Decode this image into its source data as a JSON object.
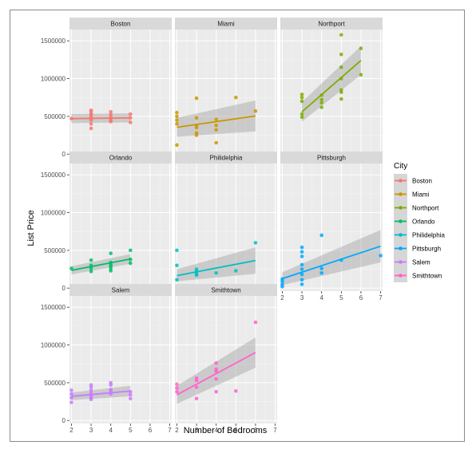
{
  "chart_data": {
    "type": "scatter",
    "xlabel": "Number of Bedrooms",
    "ylabel": "List Price",
    "xlim": [
      1.9,
      7.1
    ],
    "ylim": [
      -40000,
      1650000
    ],
    "x_ticks": [
      2,
      3,
      4,
      5,
      6,
      7
    ],
    "y_ticks": [
      0,
      500000,
      1000000,
      1500000
    ],
    "y_tick_labels": [
      "0",
      "500000",
      "1000000",
      "1500000"
    ],
    "grid": true,
    "legend": {
      "title": "City",
      "placement": "right",
      "entries": [
        "Boston",
        "Miami",
        "Northport",
        "Orlando",
        "Philidelphia",
        "Pittsburgh",
        "Salem",
        "Smithtown"
      ]
    },
    "facets": [
      {
        "name": "Boston",
        "color": "#F8766D",
        "points": [
          [
            2,
            470000
          ],
          [
            3,
            450000
          ],
          [
            3,
            480000
          ],
          [
            3,
            510000
          ],
          [
            3,
            530000
          ],
          [
            3,
            560000
          ],
          [
            3,
            580000
          ],
          [
            3,
            400000
          ],
          [
            3,
            340000
          ],
          [
            4,
            450000
          ],
          [
            4,
            480000
          ],
          [
            4,
            520000
          ],
          [
            4,
            560000
          ],
          [
            4,
            430000
          ],
          [
            5,
            420000
          ],
          [
            5,
            480000
          ],
          [
            5,
            530000
          ]
        ],
        "fit": {
          "x": [
            2,
            5
          ],
          "y": [
            470000,
            480000
          ]
        },
        "band": {
          "lower": [
            410000,
            420000
          ],
          "upper": [
            530000,
            540000
          ]
        }
      },
      {
        "name": "Miami",
        "color": "#CD9600",
        "points": [
          [
            2,
            120000
          ],
          [
            2,
            400000
          ],
          [
            2,
            450000
          ],
          [
            2,
            500000
          ],
          [
            2,
            550000
          ],
          [
            3,
            250000
          ],
          [
            3,
            280000
          ],
          [
            3,
            350000
          ],
          [
            3,
            380000
          ],
          [
            3,
            480000
          ],
          [
            3,
            740000
          ],
          [
            4,
            150000
          ],
          [
            4,
            320000
          ],
          [
            4,
            380000
          ],
          [
            4,
            460000
          ],
          [
            5,
            750000
          ],
          [
            6,
            570000
          ]
        ],
        "fit": {
          "x": [
            2,
            6
          ],
          "y": [
            355000,
            505000
          ]
        },
        "band": {
          "lower": [
            230000,
            300000
          ],
          "upper": [
            480000,
            710000
          ]
        }
      },
      {
        "name": "Northport",
        "color": "#7CAE00",
        "points": [
          [
            3,
            490000
          ],
          [
            3,
            530000
          ],
          [
            3,
            700000
          ],
          [
            3,
            750000
          ],
          [
            3,
            790000
          ],
          [
            4,
            620000
          ],
          [
            4,
            680000
          ],
          [
            4,
            720000
          ],
          [
            4,
            780000
          ],
          [
            5,
            730000
          ],
          [
            5,
            820000
          ],
          [
            5,
            850000
          ],
          [
            5,
            1000000
          ],
          [
            5,
            1150000
          ],
          [
            5,
            1320000
          ],
          [
            5,
            1580000
          ],
          [
            6,
            1050000
          ],
          [
            6,
            1400000
          ]
        ],
        "fit": {
          "x": [
            3,
            6
          ],
          "y": [
            560000,
            1240000
          ]
        },
        "band": {
          "lower": [
            430000,
            1050000
          ],
          "upper": [
            690000,
            1430000
          ]
        }
      },
      {
        "name": "Orlando",
        "color": "#00BE67",
        "points": [
          [
            2,
            260000
          ],
          [
            3,
            220000
          ],
          [
            3,
            260000
          ],
          [
            3,
            300000
          ],
          [
            3,
            370000
          ],
          [
            4,
            230000
          ],
          [
            4,
            260000
          ],
          [
            4,
            290000
          ],
          [
            4,
            310000
          ],
          [
            4,
            340000
          ],
          [
            4,
            460000
          ],
          [
            5,
            330000
          ],
          [
            5,
            380000
          ],
          [
            5,
            500000
          ]
        ],
        "fit": {
          "x": [
            2,
            5
          ],
          "y": [
            235000,
            385000
          ]
        },
        "band": {
          "lower": [
            180000,
            320000
          ],
          "upper": [
            290000,
            450000
          ]
        }
      },
      {
        "name": "Philidelphia",
        "color": "#00BFC4",
        "points": [
          [
            2,
            110000
          ],
          [
            2,
            300000
          ],
          [
            2,
            500000
          ],
          [
            3,
            170000
          ],
          [
            3,
            190000
          ],
          [
            3,
            220000
          ],
          [
            3,
            250000
          ],
          [
            4,
            200000
          ],
          [
            5,
            230000
          ],
          [
            6,
            600000
          ]
        ],
        "fit": {
          "x": [
            2,
            6
          ],
          "y": [
            165000,
            365000
          ]
        },
        "band": {
          "lower": [
            90000,
            190000
          ],
          "upper": [
            250000,
            540000
          ]
        }
      },
      {
        "name": "Pittsburgh",
        "color": "#00A9FF",
        "points": [
          [
            2,
            20000
          ],
          [
            2,
            50000
          ],
          [
            2,
            90000
          ],
          [
            2,
            120000
          ],
          [
            3,
            50000
          ],
          [
            3,
            110000
          ],
          [
            3,
            180000
          ],
          [
            3,
            250000
          ],
          [
            3,
            310000
          ],
          [
            3,
            420000
          ],
          [
            3,
            480000
          ],
          [
            3,
            540000
          ],
          [
            4,
            200000
          ],
          [
            4,
            260000
          ],
          [
            4,
            700000
          ],
          [
            5,
            370000
          ],
          [
            7,
            430000
          ]
        ],
        "fit": {
          "x": [
            2,
            7
          ],
          "y": [
            125000,
            555000
          ]
        },
        "band": {
          "lower": [
            40000,
            340000
          ],
          "upper": [
            210000,
            770000
          ]
        }
      },
      {
        "name": "Salem",
        "color": "#C77CFF",
        "points": [
          [
            2,
            240000
          ],
          [
            2,
            300000
          ],
          [
            2,
            350000
          ],
          [
            2,
            400000
          ],
          [
            3,
            280000
          ],
          [
            3,
            300000
          ],
          [
            3,
            320000
          ],
          [
            3,
            360000
          ],
          [
            3,
            400000
          ],
          [
            3,
            440000
          ],
          [
            3,
            470000
          ],
          [
            4,
            350000
          ],
          [
            4,
            390000
          ],
          [
            4,
            410000
          ],
          [
            4,
            470000
          ],
          [
            4,
            500000
          ],
          [
            5,
            290000
          ],
          [
            5,
            340000
          ],
          [
            5,
            380000
          ]
        ],
        "fit": {
          "x": [
            2,
            5
          ],
          "y": [
            320000,
            390000
          ]
        },
        "band": {
          "lower": [
            270000,
            320000
          ],
          "upper": [
            370000,
            460000
          ]
        }
      },
      {
        "name": "Smithtown",
        "color": "#FF61CC",
        "points": [
          [
            2,
            380000
          ],
          [
            2,
            430000
          ],
          [
            2,
            480000
          ],
          [
            3,
            290000
          ],
          [
            3,
            440000
          ],
          [
            3,
            530000
          ],
          [
            3,
            560000
          ],
          [
            4,
            380000
          ],
          [
            4,
            550000
          ],
          [
            4,
            650000
          ],
          [
            4,
            680000
          ],
          [
            4,
            760000
          ],
          [
            5,
            390000
          ],
          [
            6,
            1300000
          ]
        ],
        "fit": {
          "x": [
            2,
            6
          ],
          "y": [
            340000,
            900000
          ]
        },
        "band": {
          "lower": [
            220000,
            700000
          ],
          "upper": [
            460000,
            1100000
          ]
        }
      }
    ]
  }
}
